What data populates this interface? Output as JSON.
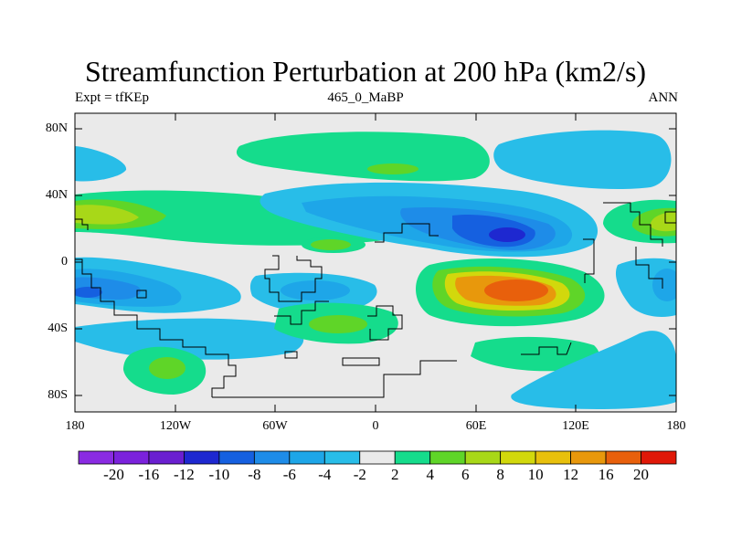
{
  "title": "Streamfunction Perturbation at 200 hPa (km2/s)",
  "subtitle_left": "Expt = tfKEp",
  "subtitle_center": "465_0_MaBP",
  "subtitle_right": "ANN",
  "y_ticks": [
    "80N",
    "40N",
    "0",
    "40S",
    "80S"
  ],
  "x_ticks": [
    "180",
    "120W",
    "60W",
    "0",
    "60E",
    "120E",
    "180"
  ],
  "colorbar": {
    "colors": [
      "#8a2be2",
      "#7b22dc",
      "#6a1fd0",
      "#1e28d0",
      "#1560e0",
      "#1e8ce8",
      "#1ea6e8",
      "#28bde8",
      "#eaeaea",
      "#15dc8c",
      "#5fd528",
      "#a8d818",
      "#d2d80c",
      "#e8c00c",
      "#e8980c",
      "#e8600c",
      "#e01808"
    ],
    "labels": [
      "-20",
      "-16",
      "-12",
      "-10",
      "-8",
      "-6",
      "-4",
      "-2",
      "2",
      "4",
      "6",
      "8",
      "10",
      "12",
      "16",
      "20"
    ]
  },
  "chart_data": {
    "type": "heatmap",
    "variable": "Streamfunction Perturbation at 200 hPa",
    "units": "km2/s",
    "x_range": [
      -180,
      180
    ],
    "y_range": [
      -90,
      90
    ],
    "contour_levels": [
      -20,
      -16,
      -12,
      -10,
      -8,
      -6,
      -4,
      -2,
      2,
      4,
      6,
      8,
      10,
      12,
      16,
      20
    ],
    "features": [
      {
        "type": "min",
        "lon": 85,
        "lat": 17,
        "value": -11
      },
      {
        "type": "max",
        "lon": 90,
        "lat": -17,
        "value": 14
      },
      {
        "type": "max",
        "lon": -157,
        "lat": 27,
        "value": 6
      },
      {
        "type": "min",
        "lon": -162,
        "lat": -20,
        "value": -8
      },
      {
        "type": "min",
        "lon": 146,
        "lat": -65,
        "value": -4
      },
      {
        "type": "max",
        "lon": -128,
        "lat": -62,
        "value": 6
      }
    ]
  }
}
